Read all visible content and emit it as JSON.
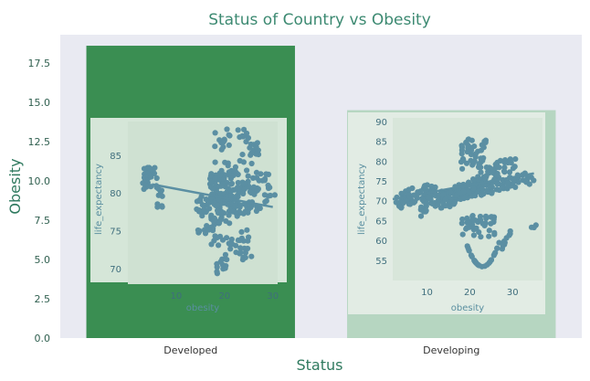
{
  "chart_data": [
    {
      "type": "bar",
      "title": "Status of Country vs Obesity",
      "xlabel": "Status",
      "ylabel": "Obesity",
      "categories": [
        "Developed",
        "Developing"
      ],
      "values": [
        18.6,
        14.5
      ],
      "ylim": [
        0,
        19.3
      ],
      "yticks": [
        "0.0",
        "2.5",
        "5.0",
        "7.5",
        "10.0",
        "12.5",
        "15.0",
        "17.5"
      ],
      "colors": [
        "#3a8e52",
        "#b6d6c1"
      ],
      "background": "#e9eaf2",
      "grid": false
    },
    {
      "type": "scatter",
      "inset_of": "Developed",
      "xlabel": "obesity",
      "ylabel": "life_expectancy",
      "xticks": [
        "10",
        "20",
        "30"
      ],
      "yticks": [
        "70",
        "75",
        "80",
        "85"
      ],
      "xlim": [
        0,
        31
      ],
      "ylim": [
        68,
        89.5
      ],
      "trend": [
        [
          5,
          81.2
        ],
        [
          30,
          78.2
        ]
      ],
      "marker_color": "#5b8fa3",
      "background": "#d5e6d8"
    },
    {
      "type": "scatter",
      "inset_of": "Developing",
      "xlabel": "obesity",
      "ylabel": "life_expectancy",
      "xticks": [
        "10",
        "20",
        "30"
      ],
      "yticks": [
        "55",
        "60",
        "65",
        "70",
        "75",
        "80",
        "85",
        "90"
      ],
      "xlim": [
        2,
        37
      ],
      "ylim": [
        50,
        91
      ],
      "trend": [
        [
          2,
          70.5
        ],
        [
          35,
          77
        ]
      ],
      "marker_color": "#5b8fa3",
      "background": "#d5e6d8"
    }
  ]
}
